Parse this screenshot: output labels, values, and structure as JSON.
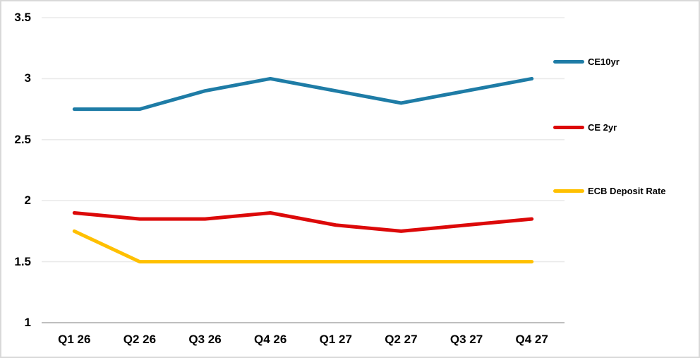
{
  "chart_data": {
    "type": "line",
    "title": "",
    "xlabel": "",
    "ylabel": "",
    "categories": [
      "Q1 26",
      "Q2 26",
      "Q3 26",
      "Q4 26",
      "Q1 27",
      "Q2 27",
      "Q3 27",
      "Q4 27"
    ],
    "series": [
      {
        "name": "CE10yr",
        "color": "#1E7CA6",
        "values": [
          2.75,
          2.75,
          2.9,
          3.0,
          2.9,
          2.8,
          2.9,
          3.0
        ]
      },
      {
        "name": "CE 2yr",
        "color": "#DC0909",
        "values": [
          1.9,
          1.85,
          1.85,
          1.9,
          1.8,
          1.75,
          1.8,
          1.85
        ]
      },
      {
        "name": "ECB Deposit Rate",
        "color": "#FFC000",
        "values": [
          1.75,
          1.5,
          1.5,
          1.5,
          1.5,
          1.5,
          1.5,
          1.5
        ]
      }
    ],
    "ylim": [
      1,
      3.5
    ],
    "yticks": [
      "3.5",
      "3",
      "2.5",
      "2",
      "1.5",
      "1"
    ],
    "ytick_values": [
      3.5,
      3,
      2.5,
      2,
      1.5,
      1
    ],
    "grid": true,
    "legend_position": "right"
  },
  "colors": {
    "background": "#FFFFFF",
    "border": "#D9D9D9",
    "gridline": "#EAEAEA",
    "axis_line": "#BFBFBF",
    "text": "#000000"
  }
}
